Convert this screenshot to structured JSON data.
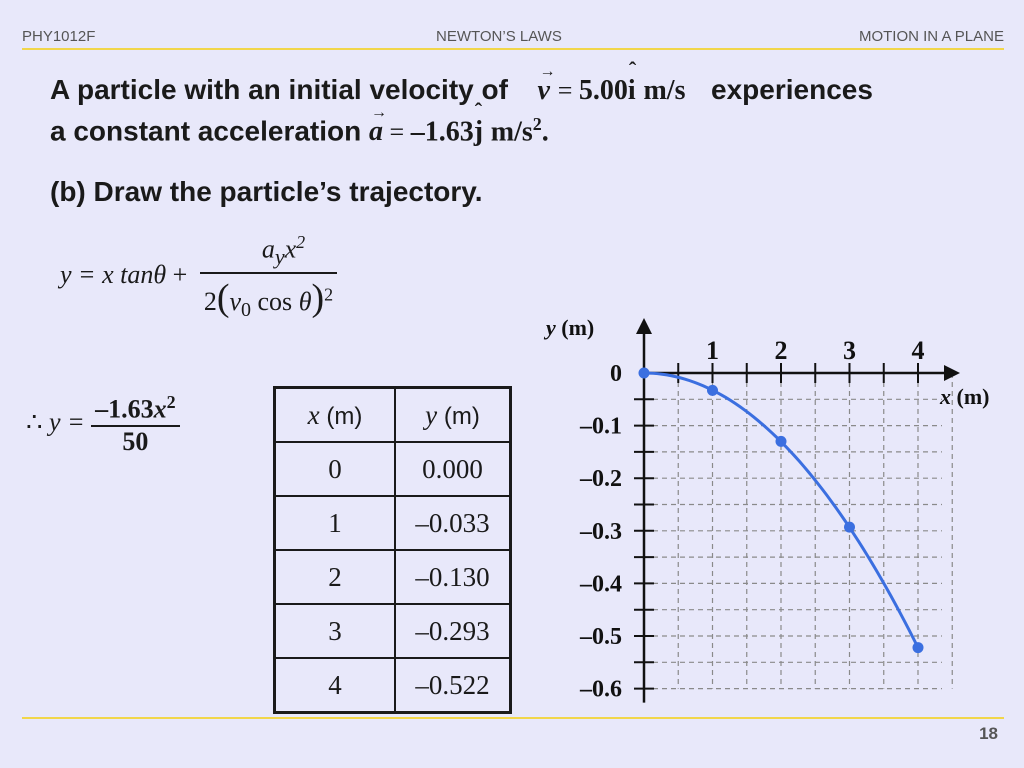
{
  "header": {
    "left": "PHY1012F",
    "center": "NEWTON’S LAWS",
    "right": "MOTION IN A PLANE"
  },
  "problem": {
    "line1_text": "A particle with an initial velocity of",
    "velocity_symbol": "v",
    "velocity_value": "5.00",
    "velocity_unit_vector": "i",
    "velocity_unit": "m/s",
    "line1_tail": "experiences",
    "line2_text": "a constant acceleration",
    "accel_symbol": "a",
    "accel_value": "–1.63",
    "accel_unit_vector": "j",
    "accel_unit": "m/s",
    "accel_unit_exp": "2",
    "accel_tail": ".",
    "part_b": "(b)  Draw the particle’s trajectory."
  },
  "formula": {
    "lhs": "y = x tan",
    "theta": "θ",
    "plus": "+",
    "num_a": "a",
    "num_sub": "y",
    "num_x": "x",
    "num_exp": "2",
    "den_2": "2",
    "den_v": "v",
    "den_sub": "0",
    "den_cos": "cos",
    "den_theta": "θ",
    "den_exp": "2"
  },
  "result": {
    "therefore": "∴",
    "lhs": "y =",
    "numerator": "–1.63",
    "num_x": "x",
    "num_exp": "2",
    "denominator": "50"
  },
  "table": {
    "headers": [
      {
        "var": "x",
        "unit": "(m)"
      },
      {
        "var": "y",
        "unit": "(m)"
      }
    ],
    "rows": [
      [
        "0",
        "0.000"
      ],
      [
        "1",
        "–0.033"
      ],
      [
        "2",
        "–0.130"
      ],
      [
        "3",
        "–0.293"
      ],
      [
        "4",
        "–0.522"
      ]
    ]
  },
  "chart_data": {
    "type": "line",
    "xlabel_var": "x",
    "xlabel_unit": "(m)",
    "ylabel_var": "y",
    "ylabel_unit": "(m)",
    "x_ticks": [
      "1",
      "2",
      "3",
      "4"
    ],
    "y_ticks": [
      "0",
      "–0.1",
      "–0.2",
      "–0.3",
      "–0.4",
      "–0.5",
      "–0.6"
    ],
    "xlim": [
      0,
      4
    ],
    "ylim": [
      -0.6,
      0
    ],
    "grid": true,
    "series": [
      {
        "x": [
          0,
          1,
          2,
          3,
          4
        ],
        "y": [
          0.0,
          -0.033,
          -0.13,
          -0.293,
          -0.522
        ]
      }
    ],
    "line_color": "#3b6fe0",
    "marker_color": "#3b6fe0"
  },
  "page_number": "18"
}
